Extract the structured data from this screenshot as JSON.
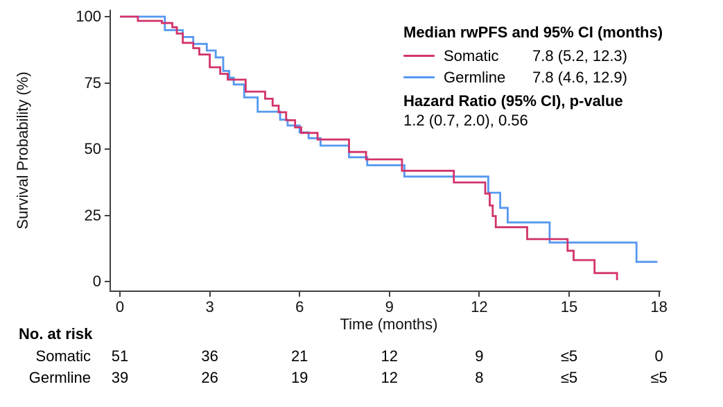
{
  "legend": {
    "title": "Median rwPFS and 95% CI (months)",
    "rows": [
      {
        "label": "Somatic",
        "value": "7.8 (5.2, 12.3)"
      },
      {
        "label": "Germline",
        "value": "7.8 (4.6, 12.9)"
      }
    ],
    "hr_title": "Hazard Ratio (95% CI), p-value",
    "hr_value": "1.2 (0.7, 2.0), 0.56"
  },
  "risk_table": {
    "title": "No. at risk",
    "time_points": [
      0,
      3,
      6,
      9,
      12,
      15,
      18
    ],
    "rows": [
      {
        "label": "Somatic",
        "counts": [
          "51",
          "36",
          "21",
          "12",
          "9",
          "≤5",
          "0"
        ]
      },
      {
        "label": "Germline",
        "counts": [
          "39",
          "26",
          "19",
          "12",
          "8",
          "≤5",
          "≤5"
        ]
      }
    ]
  },
  "chart_data": {
    "type": "line",
    "subtype": "kaplan-meier-step",
    "title": "",
    "xlabel": "Time (months)",
    "ylabel": "Survival Probability (%)",
    "xlim": [
      0,
      18
    ],
    "ylim": [
      0,
      100
    ],
    "x_ticks": [
      0,
      3,
      6,
      9,
      12,
      15,
      18
    ],
    "y_ticks": [
      0,
      25,
      50,
      75,
      100
    ],
    "grid": "off",
    "legend_position": "top-right",
    "axis_color": "#404040",
    "series": [
      {
        "name": "Somatic",
        "color": "#d2336b",
        "median": "7.8 (5.2, 12.3)",
        "end_time": 16.6,
        "points": [
          [
            0,
            100
          ],
          [
            0.6,
            98.4
          ],
          [
            1.4,
            97.6
          ],
          [
            1.75,
            96
          ],
          [
            1.9,
            93.6
          ],
          [
            2.1,
            90.1
          ],
          [
            2.45,
            88.1
          ],
          [
            2.65,
            85.7
          ],
          [
            3.0,
            80.9
          ],
          [
            3.35,
            78.4
          ],
          [
            3.6,
            76.2
          ],
          [
            4.2,
            71.7
          ],
          [
            4.85,
            69
          ],
          [
            5.1,
            66.4
          ],
          [
            5.3,
            63.9
          ],
          [
            5.55,
            60.9
          ],
          [
            5.85,
            58.2
          ],
          [
            6.05,
            56.1
          ],
          [
            6.6,
            53.6
          ],
          [
            7.65,
            48.9
          ],
          [
            8.22,
            46.1
          ],
          [
            9.42,
            41.8
          ],
          [
            11.15,
            37.4
          ],
          [
            12.2,
            33.2
          ],
          [
            12.35,
            28.7
          ],
          [
            12.45,
            24.7
          ],
          [
            12.55,
            20.5
          ],
          [
            13.6,
            16
          ],
          [
            14.95,
            11.6
          ],
          [
            15.15,
            8.1
          ],
          [
            15.85,
            3.2
          ],
          [
            16.6,
            0.5
          ]
        ]
      },
      {
        "name": "Germline",
        "color": "#5598f0",
        "median": "7.8 (4.6, 12.9)",
        "end_time": 17.95,
        "points": [
          [
            0,
            100
          ],
          [
            1.5,
            94.9
          ],
          [
            2.1,
            92.3
          ],
          [
            2.45,
            89.7
          ],
          [
            2.9,
            87.2
          ],
          [
            3.2,
            84.6
          ],
          [
            3.45,
            79.5
          ],
          [
            3.65,
            76.9
          ],
          [
            3.8,
            74.4
          ],
          [
            4.15,
            69.5
          ],
          [
            4.6,
            64.1
          ],
          [
            5.35,
            61.1
          ],
          [
            5.6,
            58.9
          ],
          [
            6.0,
            56.3
          ],
          [
            6.3,
            54.1
          ],
          [
            6.7,
            51.3
          ],
          [
            7.65,
            46.9
          ],
          [
            8.26,
            43.9
          ],
          [
            9.5,
            39.6
          ],
          [
            12.3,
            33.5
          ],
          [
            12.7,
            27.8
          ],
          [
            12.95,
            22.3
          ],
          [
            14.35,
            14.7
          ],
          [
            17.25,
            7.4
          ]
        ]
      }
    ],
    "hazard_ratio": "1.2 (0.7, 2.0), 0.56"
  }
}
